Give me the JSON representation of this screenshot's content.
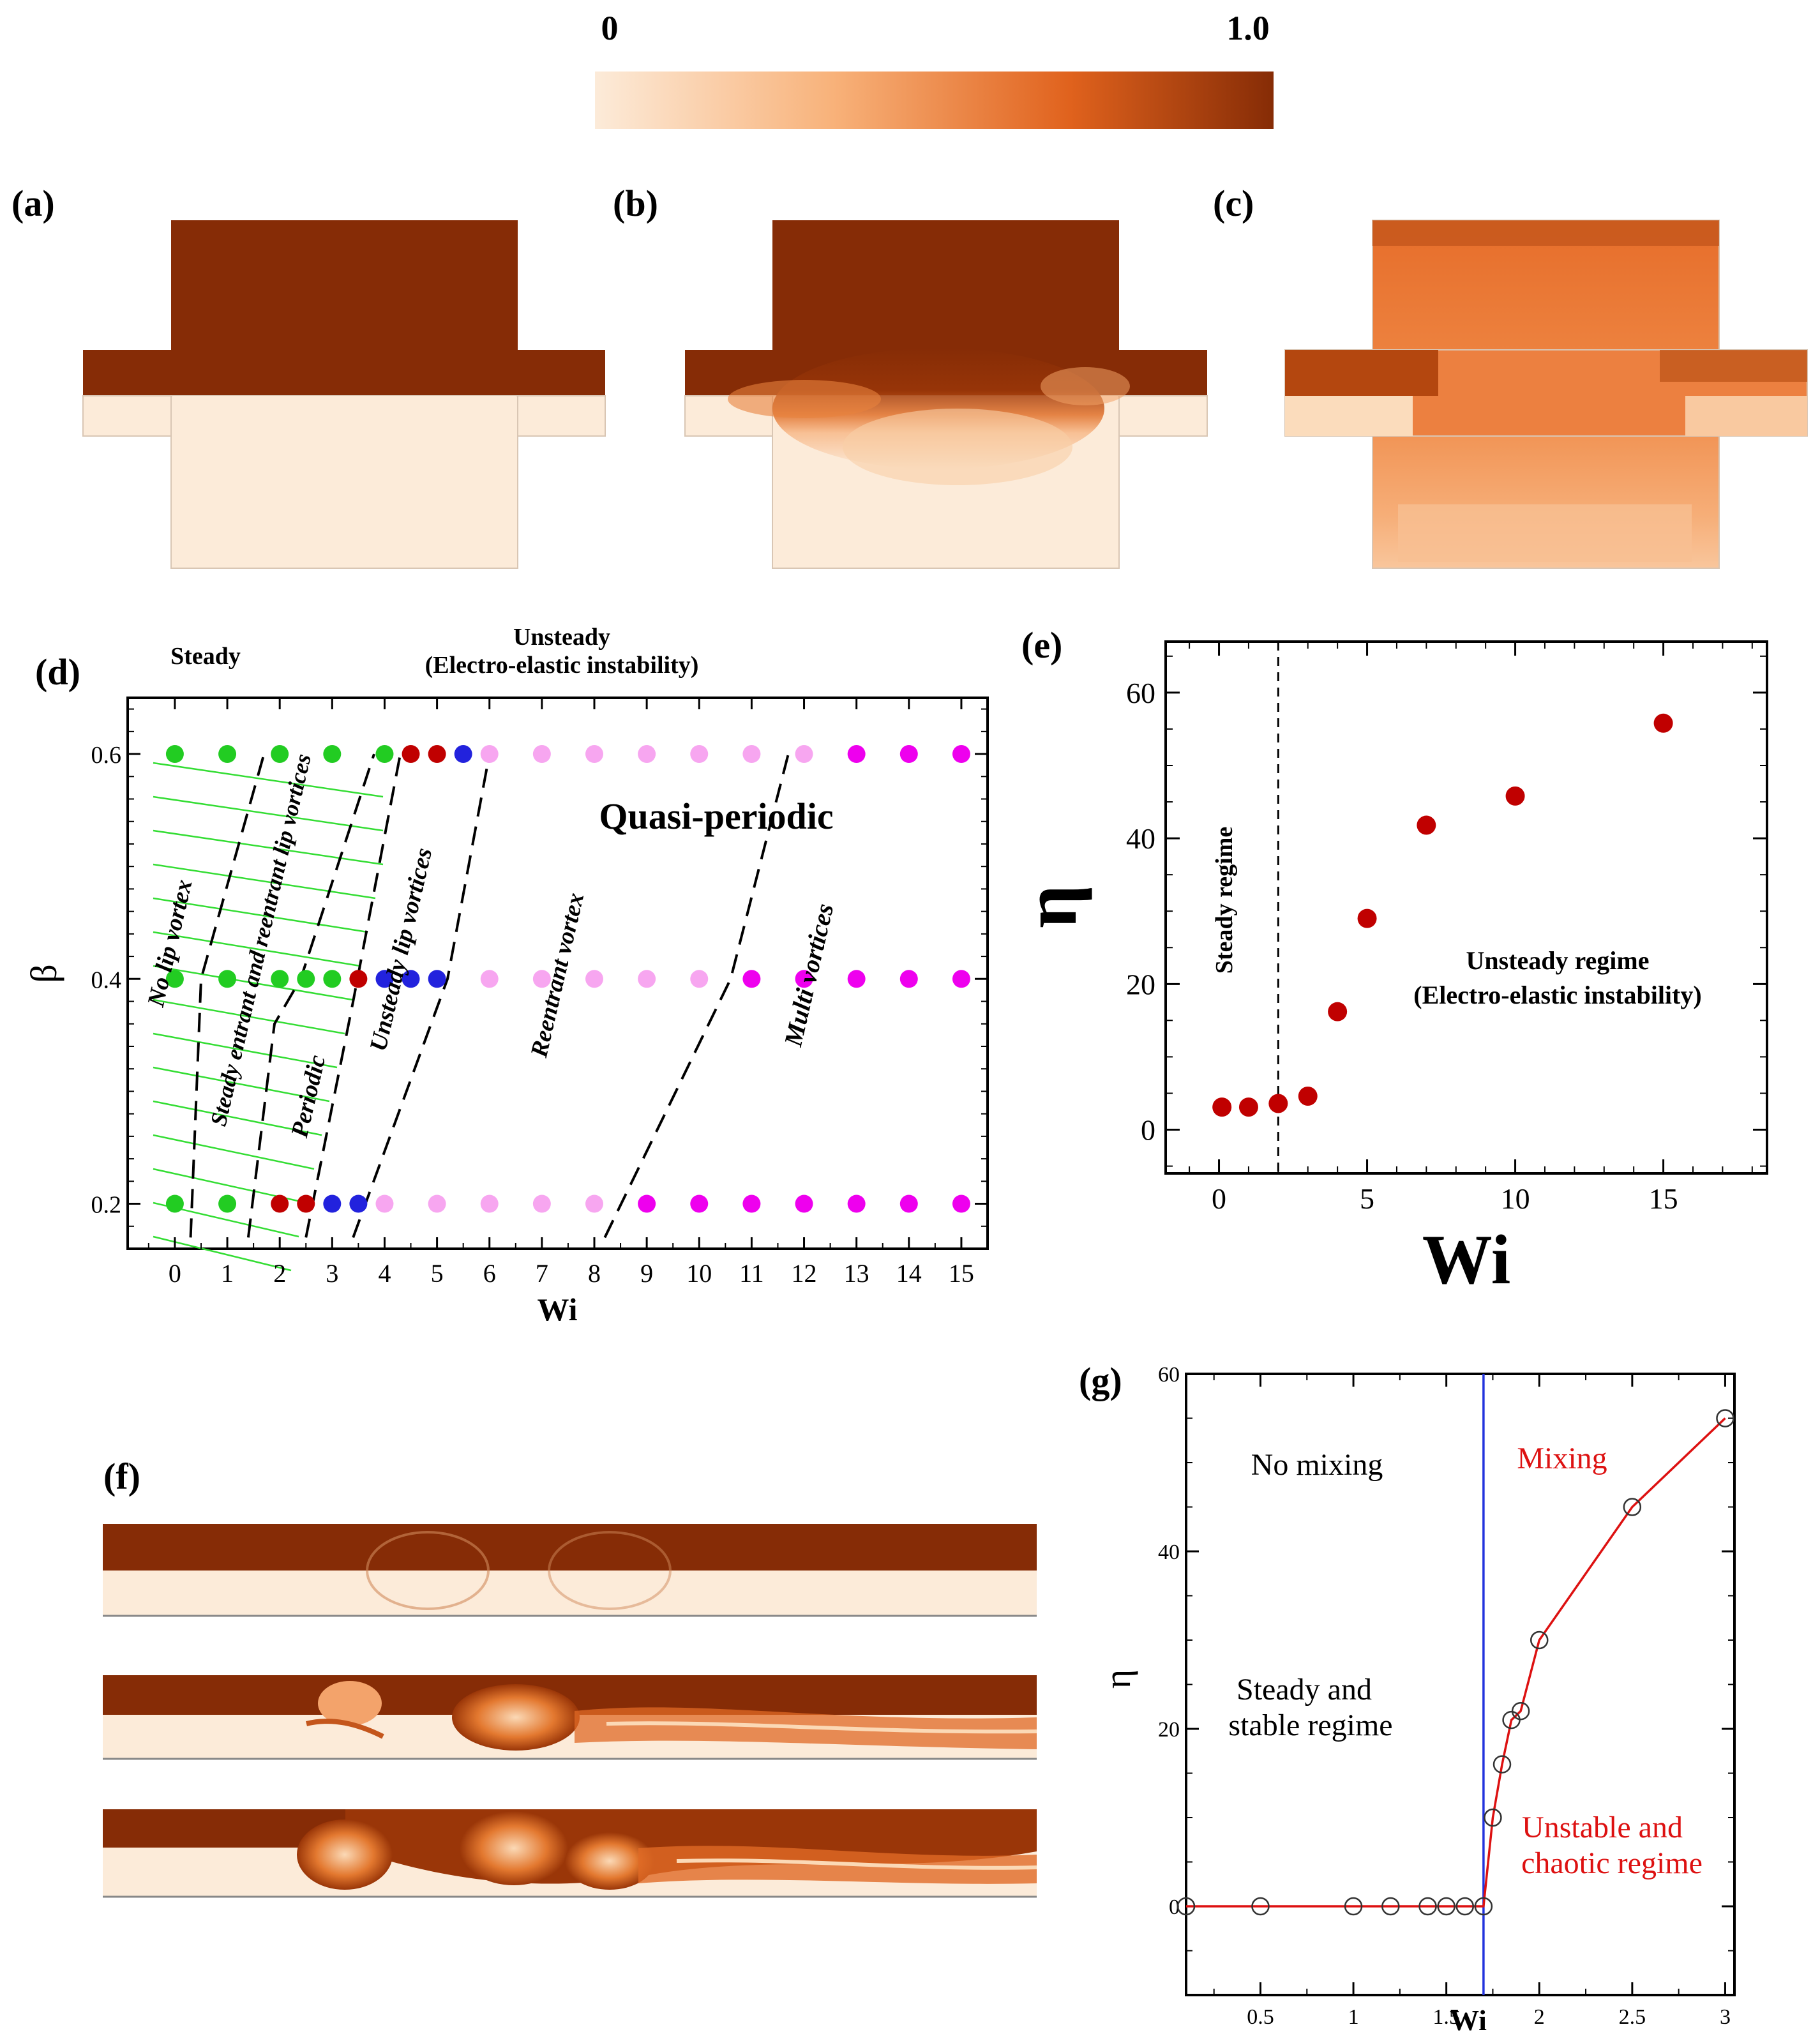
{
  "colorbar": {
    "min_label": "0",
    "max_label": "1.0",
    "low_color": "#fcebd9",
    "high_color": "#862c06"
  },
  "panels": {
    "a": {
      "label": "(a)"
    },
    "b": {
      "label": "(b)"
    },
    "c": {
      "label": "(c)"
    },
    "d": {
      "label": "(d)"
    },
    "e": {
      "label": "(e)"
    },
    "f": {
      "label": "(f)"
    },
    "g": {
      "label": "(g)"
    }
  },
  "chart_data": [
    {
      "id": "d",
      "type": "scatter",
      "title": "",
      "xlabel": "Wi",
      "ylabel": "β",
      "xlim": [
        -0.9,
        15.5
      ],
      "ylim": [
        0.16,
        0.65
      ],
      "xticks": [
        0,
        1,
        2,
        3,
        4,
        5,
        6,
        7,
        8,
        9,
        10,
        11,
        12,
        13,
        14,
        15
      ],
      "xtick_labels": [
        "0",
        "1",
        "2",
        "3",
        "4",
        "5",
        "6",
        "7",
        "8",
        "9",
        "10",
        "11",
        "12",
        "13",
        "14",
        "15"
      ],
      "yticks": [
        0.2,
        0.4,
        0.6
      ],
      "ytick_labels": [
        "0.2",
        "0.4",
        "0.6"
      ],
      "header_labels": {
        "steady": "Steady",
        "unsteady": "Unsteady",
        "unsteady_sub": "(Electro-elastic instability)"
      },
      "region_labels": [
        "No lip vortex",
        "Steady entrant and reentrant lip vortices",
        "Periodic",
        "Unsteady lip vortices",
        "Reentrant vortex",
        "Multi vortices",
        "Quasi-periodic"
      ],
      "legend_colors": {
        "steady": "#22cc22",
        "periodic": "#c00000",
        "unsteady_lip": "#2222dd",
        "reentrant": "#f7a6f0",
        "multi": "#ee00ee"
      },
      "points": [
        {
          "wi": 0,
          "beta": 0.6,
          "cls": "steady"
        },
        {
          "wi": 1,
          "beta": 0.6,
          "cls": "steady"
        },
        {
          "wi": 2,
          "beta": 0.6,
          "cls": "steady"
        },
        {
          "wi": 3,
          "beta": 0.6,
          "cls": "steady"
        },
        {
          "wi": 4,
          "beta": 0.6,
          "cls": "steady"
        },
        {
          "wi": 4.5,
          "beta": 0.6,
          "cls": "periodic"
        },
        {
          "wi": 5,
          "beta": 0.6,
          "cls": "periodic"
        },
        {
          "wi": 5.5,
          "beta": 0.6,
          "cls": "unsteady_lip"
        },
        {
          "wi": 6,
          "beta": 0.6,
          "cls": "reentrant"
        },
        {
          "wi": 7,
          "beta": 0.6,
          "cls": "reentrant"
        },
        {
          "wi": 8,
          "beta": 0.6,
          "cls": "reentrant"
        },
        {
          "wi": 9,
          "beta": 0.6,
          "cls": "reentrant"
        },
        {
          "wi": 10,
          "beta": 0.6,
          "cls": "reentrant"
        },
        {
          "wi": 11,
          "beta": 0.6,
          "cls": "reentrant"
        },
        {
          "wi": 12,
          "beta": 0.6,
          "cls": "reentrant"
        },
        {
          "wi": 13,
          "beta": 0.6,
          "cls": "multi"
        },
        {
          "wi": 14,
          "beta": 0.6,
          "cls": "multi"
        },
        {
          "wi": 15,
          "beta": 0.6,
          "cls": "multi"
        },
        {
          "wi": 0,
          "beta": 0.4,
          "cls": "steady"
        },
        {
          "wi": 1,
          "beta": 0.4,
          "cls": "steady"
        },
        {
          "wi": 2,
          "beta": 0.4,
          "cls": "steady"
        },
        {
          "wi": 2.5,
          "beta": 0.4,
          "cls": "steady"
        },
        {
          "wi": 3,
          "beta": 0.4,
          "cls": "steady"
        },
        {
          "wi": 3.5,
          "beta": 0.4,
          "cls": "periodic"
        },
        {
          "wi": 4,
          "beta": 0.4,
          "cls": "unsteady_lip"
        },
        {
          "wi": 4.5,
          "beta": 0.4,
          "cls": "unsteady_lip"
        },
        {
          "wi": 5,
          "beta": 0.4,
          "cls": "unsteady_lip"
        },
        {
          "wi": 6,
          "beta": 0.4,
          "cls": "reentrant"
        },
        {
          "wi": 7,
          "beta": 0.4,
          "cls": "reentrant"
        },
        {
          "wi": 8,
          "beta": 0.4,
          "cls": "reentrant"
        },
        {
          "wi": 9,
          "beta": 0.4,
          "cls": "reentrant"
        },
        {
          "wi": 10,
          "beta": 0.4,
          "cls": "reentrant"
        },
        {
          "wi": 11,
          "beta": 0.4,
          "cls": "multi"
        },
        {
          "wi": 12,
          "beta": 0.4,
          "cls": "multi"
        },
        {
          "wi": 13,
          "beta": 0.4,
          "cls": "multi"
        },
        {
          "wi": 14,
          "beta": 0.4,
          "cls": "multi"
        },
        {
          "wi": 15,
          "beta": 0.4,
          "cls": "multi"
        },
        {
          "wi": 0,
          "beta": 0.2,
          "cls": "steady"
        },
        {
          "wi": 1,
          "beta": 0.2,
          "cls": "steady"
        },
        {
          "wi": 2,
          "beta": 0.2,
          "cls": "periodic"
        },
        {
          "wi": 2.5,
          "beta": 0.2,
          "cls": "periodic"
        },
        {
          "wi": 3,
          "beta": 0.2,
          "cls": "unsteady_lip"
        },
        {
          "wi": 3.5,
          "beta": 0.2,
          "cls": "unsteady_lip"
        },
        {
          "wi": 4,
          "beta": 0.2,
          "cls": "reentrant"
        },
        {
          "wi": 5,
          "beta": 0.2,
          "cls": "reentrant"
        },
        {
          "wi": 6,
          "beta": 0.2,
          "cls": "reentrant"
        },
        {
          "wi": 7,
          "beta": 0.2,
          "cls": "reentrant"
        },
        {
          "wi": 8,
          "beta": 0.2,
          "cls": "reentrant"
        },
        {
          "wi": 9,
          "beta": 0.2,
          "cls": "multi"
        },
        {
          "wi": 10,
          "beta": 0.2,
          "cls": "multi"
        },
        {
          "wi": 11,
          "beta": 0.2,
          "cls": "multi"
        },
        {
          "wi": 12,
          "beta": 0.2,
          "cls": "multi"
        },
        {
          "wi": 13,
          "beta": 0.2,
          "cls": "multi"
        },
        {
          "wi": 14,
          "beta": 0.2,
          "cls": "multi"
        },
        {
          "wi": 15,
          "beta": 0.2,
          "cls": "multi"
        }
      ],
      "boundaries": [
        [
          [
            0.3,
            0.17
          ],
          [
            0.5,
            0.4
          ],
          [
            1.7,
            0.6
          ]
        ],
        [
          [
            1.4,
            0.17
          ],
          [
            1.9,
            0.36
          ],
          [
            2.4,
            0.4
          ],
          [
            3.8,
            0.6
          ]
        ],
        [
          [
            2.5,
            0.17
          ],
          [
            3.4,
            0.38
          ],
          [
            4.3,
            0.6
          ]
        ],
        [
          [
            3.4,
            0.17
          ],
          [
            5.2,
            0.4
          ],
          [
            6.0,
            0.6
          ]
        ],
        [
          [
            8.2,
            0.17
          ],
          [
            10.6,
            0.4
          ],
          [
            11.7,
            0.6
          ]
        ]
      ]
    },
    {
      "id": "e",
      "type": "scatter",
      "title": "",
      "xlabel": "Wi",
      "ylabel": "η",
      "xlim": [
        -1.8,
        18.5
      ],
      "ylim": [
        -6,
        67
      ],
      "xticks": [
        0,
        5,
        10,
        15
      ],
      "xtick_labels": [
        "0",
        "5",
        "10",
        "15"
      ],
      "yticks": [
        0,
        20,
        40,
        60
      ],
      "ytick_labels": [
        "0",
        "20",
        "40",
        "60"
      ],
      "threshold_wi": 2,
      "annotations": [
        "Steady regime",
        "Unsteady regime",
        "(Electro-elastic instability)"
      ],
      "series": [
        {
          "name": "eta",
          "color": "#c00000",
          "x": [
            0.1,
            1,
            2,
            3,
            4,
            5,
            7,
            10,
            15
          ],
          "y": [
            3.1,
            3.1,
            3.6,
            4.6,
            16.2,
            29.0,
            41.8,
            45.8,
            55.8
          ]
        }
      ]
    },
    {
      "id": "g",
      "type": "line",
      "title": "",
      "xlabel": "Wi",
      "ylabel": "η",
      "xlim": [
        0.1,
        3.05
      ],
      "ylim": [
        -10,
        60
      ],
      "xticks": [
        0.5,
        1,
        1.5,
        2,
        2.5,
        3
      ],
      "xtick_labels": [
        "0.5",
        "1",
        "1.5",
        "2",
        "2.5",
        "3"
      ],
      "yticks": [
        0,
        20,
        40,
        60
      ],
      "ytick_labels": [
        "0",
        "20",
        "40",
        "60"
      ],
      "threshold_wi": 1.7,
      "threshold_color": "#2233dd",
      "line_color": "#dd1111",
      "annotations": {
        "no_mixing": "No mixing",
        "mixing": "Mixing",
        "steady_1": "Steady and",
        "steady_2": "stable regime",
        "unstable_1": "Unstable and",
        "unstable_2": "chaotic regime"
      },
      "series": [
        {
          "name": "eta",
          "x": [
            0.1,
            0.5,
            1.0,
            1.2,
            1.4,
            1.5,
            1.6,
            1.7,
            1.75,
            1.8,
            1.85,
            1.9,
            2.0,
            2.5,
            3.0
          ],
          "y": [
            0,
            0,
            0,
            0,
            0,
            0,
            0,
            0,
            10,
            16,
            21,
            22,
            30,
            45,
            55
          ]
        }
      ]
    }
  ]
}
